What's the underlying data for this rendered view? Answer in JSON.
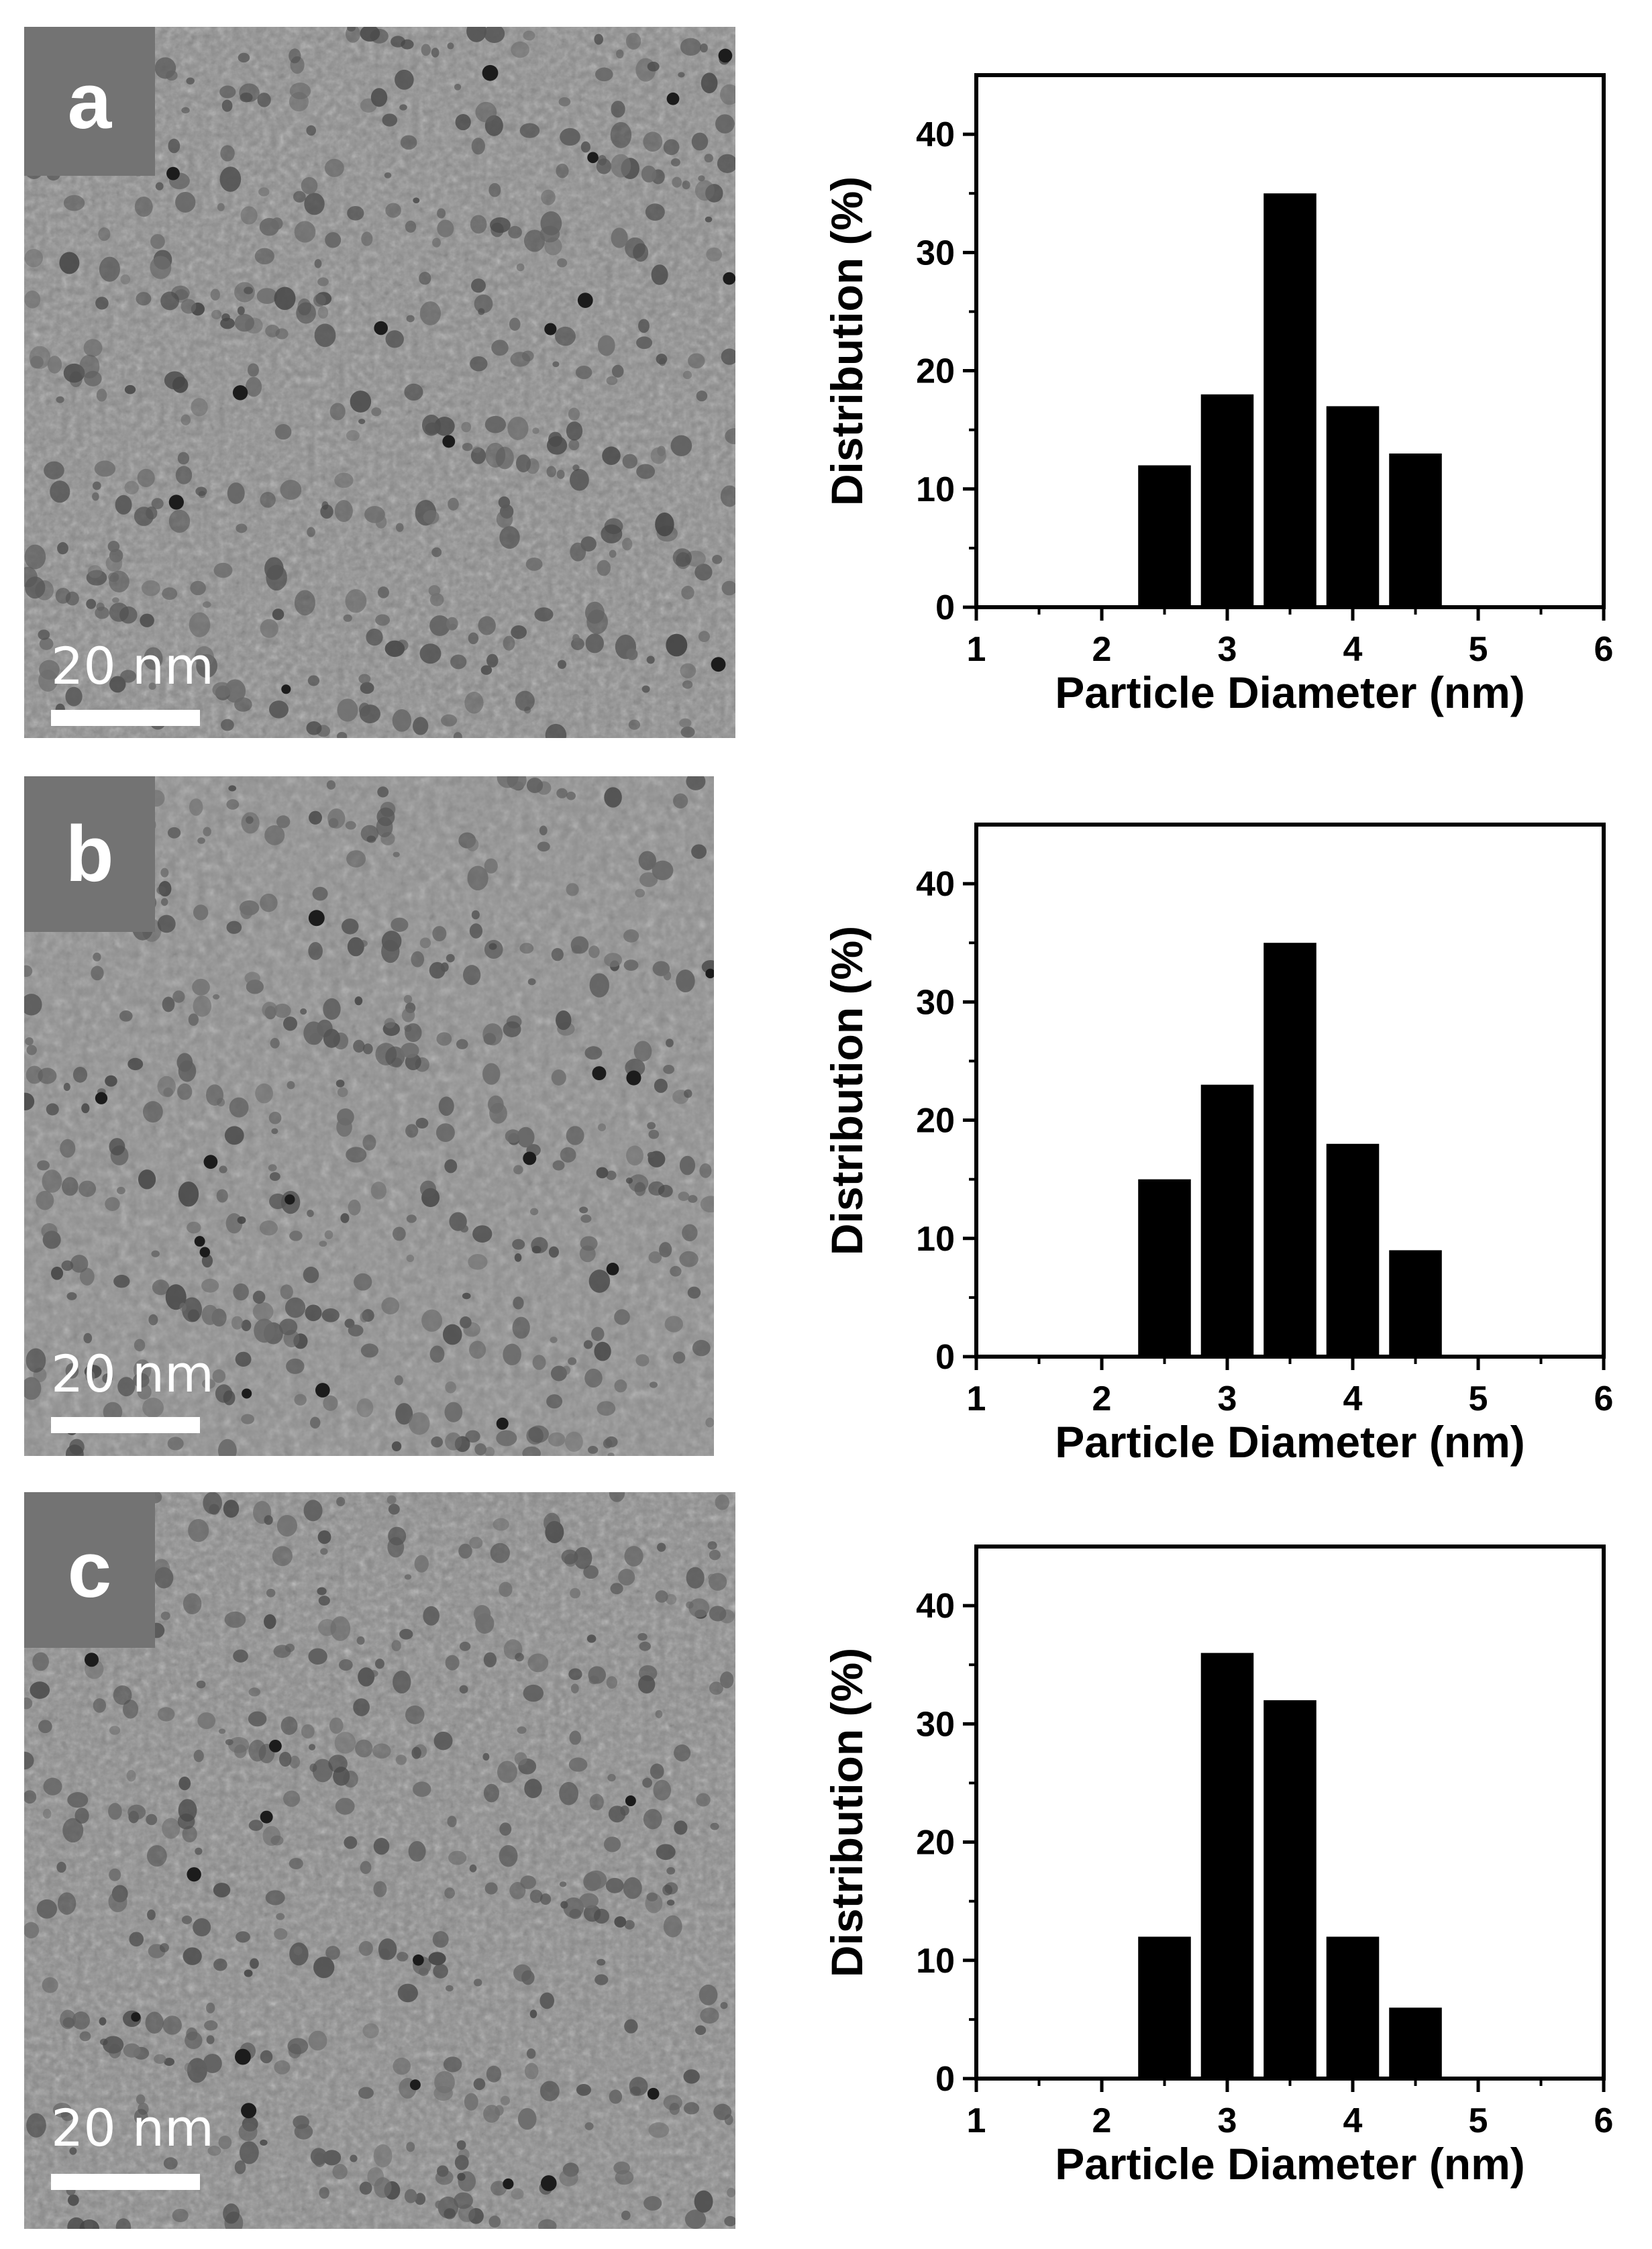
{
  "panels": [
    {
      "label": "a",
      "scale_bar": "20 nm"
    },
    {
      "label": "b",
      "scale_bar": "20 nm"
    },
    {
      "label": "c",
      "scale_bar": "20 nm"
    }
  ],
  "chart_data": [
    {
      "type": "bar",
      "xlabel": "Particle Diameter (nm)",
      "ylabel": "Distribution (%)",
      "xlim": [
        1,
        6
      ],
      "ylim": [
        0,
        45
      ],
      "xticks": [
        1,
        2,
        3,
        4,
        5,
        6
      ],
      "yticks": [
        0,
        10,
        20,
        30,
        40
      ],
      "x": [
        2.5,
        3.0,
        3.5,
        4.0,
        4.5
      ],
      "values": [
        12,
        18,
        35,
        17,
        13
      ],
      "bar_color": "#000000"
    },
    {
      "type": "bar",
      "xlabel": "Particle Diameter (nm)",
      "ylabel": "Distribution (%)",
      "xlim": [
        1,
        6
      ],
      "ylim": [
        0,
        45
      ],
      "xticks": [
        1,
        2,
        3,
        4,
        5,
        6
      ],
      "yticks": [
        0,
        10,
        20,
        30,
        40
      ],
      "x": [
        2.5,
        3.0,
        3.5,
        4.0,
        4.5
      ],
      "values": [
        15,
        23,
        35,
        18,
        9
      ],
      "bar_color": "#000000"
    },
    {
      "type": "bar",
      "xlabel": "Particle Diameter (nm)",
      "ylabel": "Distribution (%)",
      "xlim": [
        1,
        6
      ],
      "ylim": [
        0,
        45
      ],
      "xticks": [
        1,
        2,
        3,
        4,
        5,
        6
      ],
      "yticks": [
        0,
        10,
        20,
        30,
        40
      ],
      "x": [
        2.5,
        3.0,
        3.5,
        4.0,
        4.5
      ],
      "values": [
        12,
        36,
        32,
        12,
        6
      ],
      "bar_color": "#000000"
    }
  ]
}
